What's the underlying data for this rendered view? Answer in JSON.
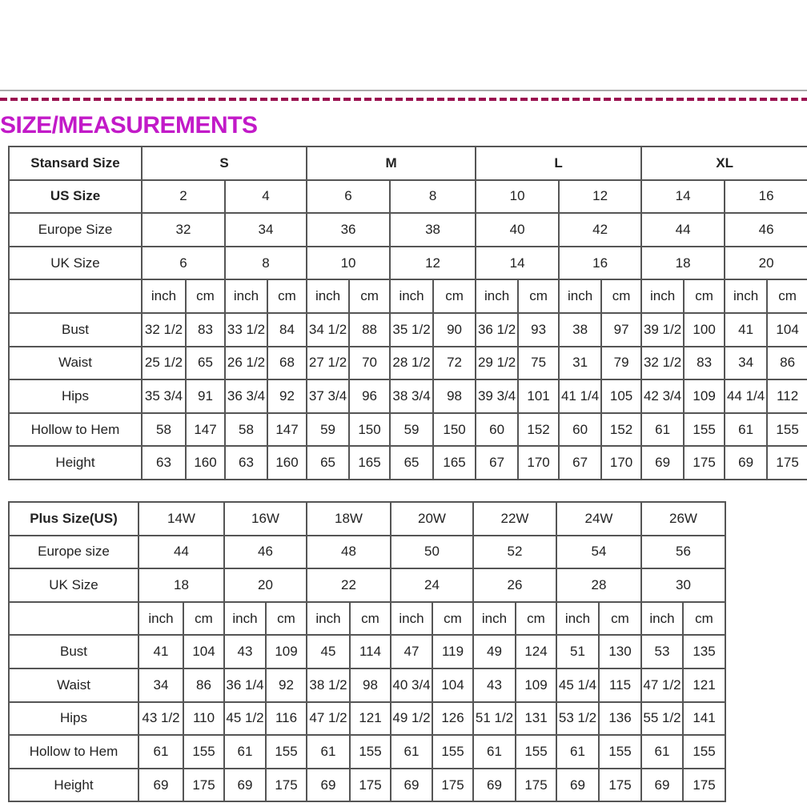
{
  "title": "SIZE/MEASUREMENTS",
  "colors": {
    "title": "#c21ac8",
    "dash_line": "#9a1050",
    "border": "#555555"
  },
  "standard_table": {
    "header_label": "Stansard Size",
    "groups": [
      "S",
      "M",
      "L",
      "XL"
    ],
    "size_rows": [
      {
        "label": "US Size",
        "values": [
          "2",
          "4",
          "6",
          "8",
          "10",
          "12",
          "14",
          "16"
        ]
      },
      {
        "label": "Europe Size",
        "values": [
          "32",
          "34",
          "36",
          "38",
          "40",
          "42",
          "44",
          "46"
        ]
      },
      {
        "label": "UK Size",
        "values": [
          "6",
          "8",
          "10",
          "12",
          "14",
          "16",
          "18",
          "20"
        ]
      }
    ],
    "unit_labels": [
      "inch",
      "cm"
    ],
    "measure_rows": [
      {
        "label": "Bust",
        "values": [
          "32 1/2",
          "83",
          "33 1/2",
          "84",
          "34 1/2",
          "88",
          "35 1/2",
          "90",
          "36 1/2",
          "93",
          "38",
          "97",
          "39 1/2",
          "100",
          "41",
          "104"
        ]
      },
      {
        "label": "Waist",
        "values": [
          "25 1/2",
          "65",
          "26 1/2",
          "68",
          "27 1/2",
          "70",
          "28 1/2",
          "72",
          "29 1/2",
          "75",
          "31",
          "79",
          "32 1/2",
          "83",
          "34",
          "86"
        ]
      },
      {
        "label": "Hips",
        "values": [
          "35 3/4",
          "91",
          "36 3/4",
          "92",
          "37 3/4",
          "96",
          "38 3/4",
          "98",
          "39 3/4",
          "101",
          "41 1/4",
          "105",
          "42 3/4",
          "109",
          "44 1/4",
          "112"
        ]
      },
      {
        "label": "Hollow to Hem",
        "values": [
          "58",
          "147",
          "58",
          "147",
          "59",
          "150",
          "59",
          "150",
          "60",
          "152",
          "60",
          "152",
          "61",
          "155",
          "61",
          "155"
        ]
      },
      {
        "label": "Height",
        "values": [
          "63",
          "160",
          "63",
          "160",
          "65",
          "165",
          "65",
          "165",
          "67",
          "170",
          "67",
          "170",
          "69",
          "175",
          "69",
          "175"
        ]
      }
    ]
  },
  "plus_table": {
    "header_label": "Plus Size(US)",
    "sizes": [
      "14W",
      "16W",
      "18W",
      "20W",
      "22W",
      "24W",
      "26W"
    ],
    "size_rows": [
      {
        "label": "Europe size",
        "values": [
          "44",
          "46",
          "48",
          "50",
          "52",
          "54",
          "56"
        ]
      },
      {
        "label": "UK Size",
        "values": [
          "18",
          "20",
          "22",
          "24",
          "26",
          "28",
          "30"
        ]
      }
    ],
    "unit_labels": [
      "inch",
      "cm"
    ],
    "measure_rows": [
      {
        "label": "Bust",
        "values": [
          "41",
          "104",
          "43",
          "109",
          "45",
          "114",
          "47",
          "119",
          "49",
          "124",
          "51",
          "130",
          "53",
          "135"
        ]
      },
      {
        "label": "Waist",
        "values": [
          "34",
          "86",
          "36 1/4",
          "92",
          "38 1/2",
          "98",
          "40 3/4",
          "104",
          "43",
          "109",
          "45 1/4",
          "115",
          "47 1/2",
          "121"
        ]
      },
      {
        "label": "Hips",
        "values": [
          "43 1/2",
          "110",
          "45 1/2",
          "116",
          "47 1/2",
          "121",
          "49 1/2",
          "126",
          "51 1/2",
          "131",
          "53 1/2",
          "136",
          "55 1/2",
          "141"
        ]
      },
      {
        "label": "Hollow to Hem",
        "values": [
          "61",
          "155",
          "61",
          "155",
          "61",
          "155",
          "61",
          "155",
          "61",
          "155",
          "61",
          "155",
          "61",
          "155"
        ]
      },
      {
        "label": "Height",
        "values": [
          "69",
          "175",
          "69",
          "175",
          "69",
          "175",
          "69",
          "175",
          "69",
          "175",
          "69",
          "175",
          "69",
          "175"
        ]
      }
    ]
  }
}
